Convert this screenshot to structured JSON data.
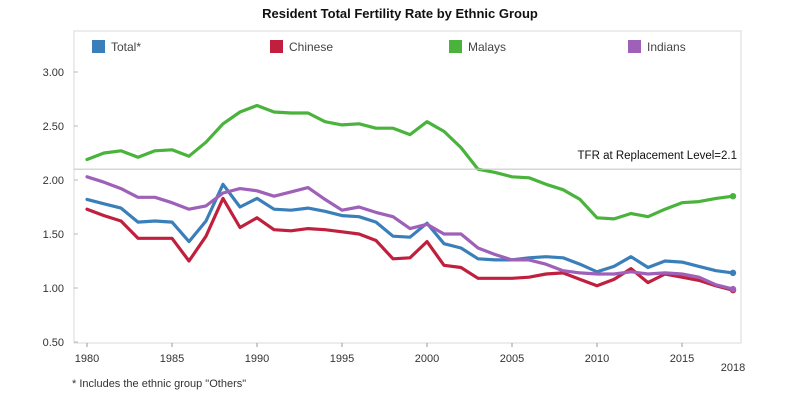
{
  "chart_data": {
    "type": "line",
    "title": "Resident Total Fertility Rate by Ethnic Group",
    "xlabel": "",
    "ylabel": "",
    "xlim": [
      1980,
      2018
    ],
    "ylim": [
      0.5,
      3.25
    ],
    "yticks": [
      "0.50",
      "1.00",
      "1.50",
      "2.00",
      "2.50",
      "3.00"
    ],
    "xticks": [
      "1980",
      "1985",
      "1990",
      "1995",
      "2000",
      "2005",
      "2010",
      "2015",
      "2018"
    ],
    "grid": false,
    "legend_position": "top",
    "x": [
      1980,
      1981,
      1982,
      1983,
      1984,
      1985,
      1986,
      1987,
      1988,
      1989,
      1990,
      1991,
      1992,
      1993,
      1994,
      1995,
      1996,
      1997,
      1998,
      1999,
      2000,
      2001,
      2002,
      2003,
      2004,
      2005,
      2006,
      2007,
      2008,
      2009,
      2010,
      2011,
      2012,
      2013,
      2014,
      2015,
      2016,
      2017,
      2018
    ],
    "series": [
      {
        "name": "Total*",
        "color": "#3a7fb9",
        "values": [
          1.82,
          1.78,
          1.74,
          1.61,
          1.62,
          1.61,
          1.43,
          1.62,
          1.96,
          1.75,
          1.83,
          1.73,
          1.72,
          1.74,
          1.71,
          1.67,
          1.66,
          1.61,
          1.48,
          1.47,
          1.6,
          1.41,
          1.37,
          1.27,
          1.26,
          1.26,
          1.28,
          1.29,
          1.28,
          1.22,
          1.15,
          1.2,
          1.29,
          1.19,
          1.25,
          1.24,
          1.2,
          1.16,
          1.14
        ]
      },
      {
        "name": "Chinese",
        "color": "#c0203d",
        "values": [
          1.73,
          1.67,
          1.62,
          1.46,
          1.46,
          1.46,
          1.25,
          1.48,
          1.83,
          1.56,
          1.65,
          1.54,
          1.53,
          1.55,
          1.54,
          1.52,
          1.5,
          1.44,
          1.27,
          1.28,
          1.43,
          1.21,
          1.19,
          1.09,
          1.09,
          1.09,
          1.1,
          1.13,
          1.14,
          1.08,
          1.02,
          1.08,
          1.18,
          1.05,
          1.13,
          1.1,
          1.07,
          1.02,
          0.98
        ]
      },
      {
        "name": "Malays",
        "color": "#49b33c",
        "values": [
          2.19,
          2.25,
          2.27,
          2.21,
          2.27,
          2.28,
          2.22,
          2.35,
          2.52,
          2.63,
          2.69,
          2.63,
          2.62,
          2.62,
          2.54,
          2.51,
          2.52,
          2.48,
          2.48,
          2.42,
          2.54,
          2.45,
          2.3,
          2.1,
          2.07,
          2.03,
          2.02,
          1.96,
          1.91,
          1.82,
          1.65,
          1.64,
          1.69,
          1.66,
          1.73,
          1.79,
          1.8,
          1.83,
          1.85
        ]
      },
      {
        "name": "Indians",
        "color": "#9e60b8",
        "values": [
          2.03,
          1.98,
          1.92,
          1.84,
          1.84,
          1.79,
          1.73,
          1.76,
          1.88,
          1.92,
          1.9,
          1.85,
          1.89,
          1.93,
          1.82,
          1.72,
          1.75,
          1.7,
          1.66,
          1.55,
          1.59,
          1.5,
          1.5,
          1.37,
          1.31,
          1.26,
          1.26,
          1.22,
          1.16,
          1.14,
          1.13,
          1.13,
          1.15,
          1.13,
          1.14,
          1.13,
          1.1,
          1.03,
          0.99
        ]
      }
    ],
    "annotations": [
      {
        "text": "TFR at Replacement Level=2.1",
        "y": 2.1
      }
    ]
  },
  "footnote": "* Includes the ethnic group \"Others\""
}
